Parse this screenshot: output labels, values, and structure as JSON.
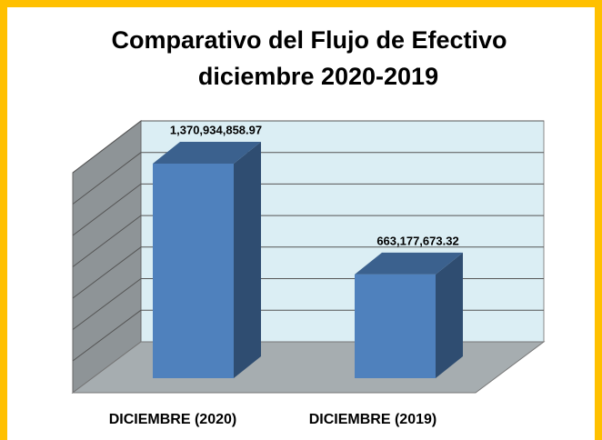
{
  "chart_data": {
    "type": "bar3d",
    "title": "Comparativo del Flujo de Efectivo",
    "subtitle": "diciembre  2020-2019",
    "categories": [
      "DICIEMBRE (2020)",
      "DICIEMBRE (2019)"
    ],
    "values": [
      1370934858.97,
      663177673.32
    ],
    "value_labels": [
      "1,370,934,858.97",
      "663,177,673.32"
    ],
    "color": "#4f81bd"
  }
}
